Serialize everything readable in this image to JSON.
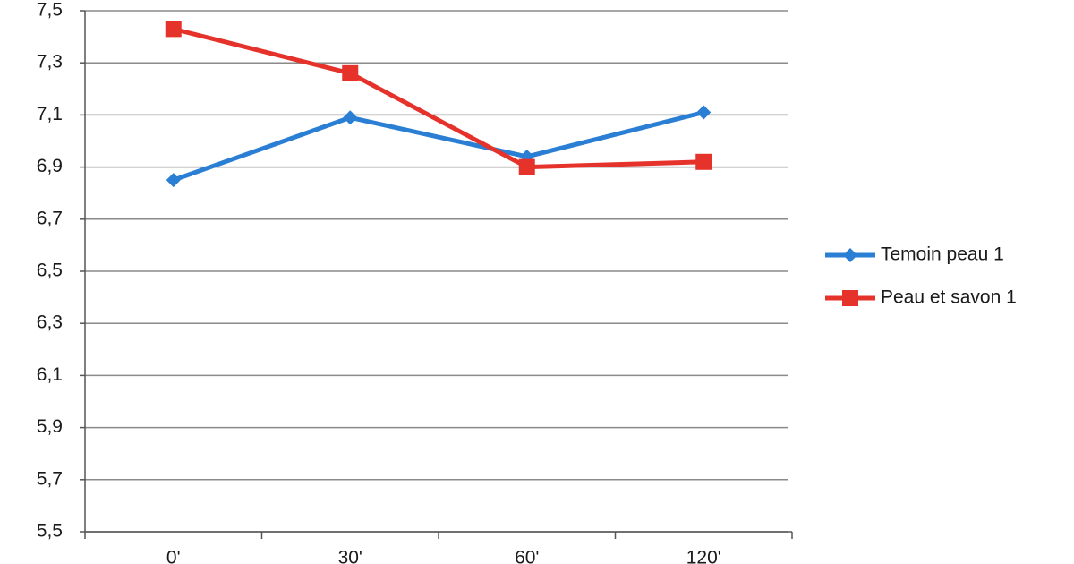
{
  "chart_data": {
    "type": "line",
    "categories": [
      "0'",
      "30'",
      "60'",
      "120'"
    ],
    "series": [
      {
        "name": "Temoin peau 1",
        "color": "#2a7fd4",
        "marker": "diamond",
        "values": [
          6.85,
          7.09,
          6.94,
          7.11
        ]
      },
      {
        "name": "Peau et savon 1",
        "color": "#e5322b",
        "marker": "square",
        "values": [
          7.43,
          7.26,
          6.9,
          6.92
        ]
      }
    ],
    "ylim": [
      5.5,
      7.5
    ],
    "yticks": [
      {
        "value": 5.5,
        "label": "5,5"
      },
      {
        "value": 5.7,
        "label": "5,7"
      },
      {
        "value": 5.9,
        "label": "5,9"
      },
      {
        "value": 6.1,
        "label": "6,1"
      },
      {
        "value": 6.3,
        "label": "6,3"
      },
      {
        "value": 6.5,
        "label": "6,5"
      },
      {
        "value": 6.7,
        "label": "6,7"
      },
      {
        "value": 6.9,
        "label": "6,9"
      },
      {
        "value": 7.1,
        "label": "7,1"
      },
      {
        "value": 7.3,
        "label": "7,3"
      },
      {
        "value": 7.5,
        "label": "7,5"
      }
    ],
    "grid": true,
    "legend": "right"
  }
}
